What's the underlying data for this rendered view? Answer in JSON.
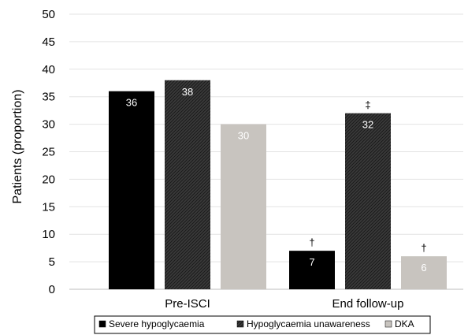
{
  "chart_data": {
    "type": "bar",
    "ylabel": "Patients (proportion)",
    "xlabel": "",
    "ylim": [
      0,
      50
    ],
    "yticks": [
      0,
      5,
      10,
      15,
      20,
      25,
      30,
      35,
      40,
      45,
      50
    ],
    "grid": true,
    "legend_position": "bottom",
    "categories": [
      "Pre-ISCI",
      "End follow-up"
    ],
    "series": [
      {
        "name": "Severe hypoglycaemia",
        "values": [
          36,
          7
        ],
        "color": "#000000",
        "markers": [
          "",
          "†"
        ]
      },
      {
        "name": "Hypoglycaemia unawareness",
        "values": [
          38,
          32
        ],
        "color": "#3a3a3a",
        "markers": [
          "",
          "‡"
        ]
      },
      {
        "name": "DKA",
        "values": [
          30,
          6
        ],
        "color": "#c8c4bf",
        "markers": [
          "",
          "†"
        ]
      }
    ]
  }
}
